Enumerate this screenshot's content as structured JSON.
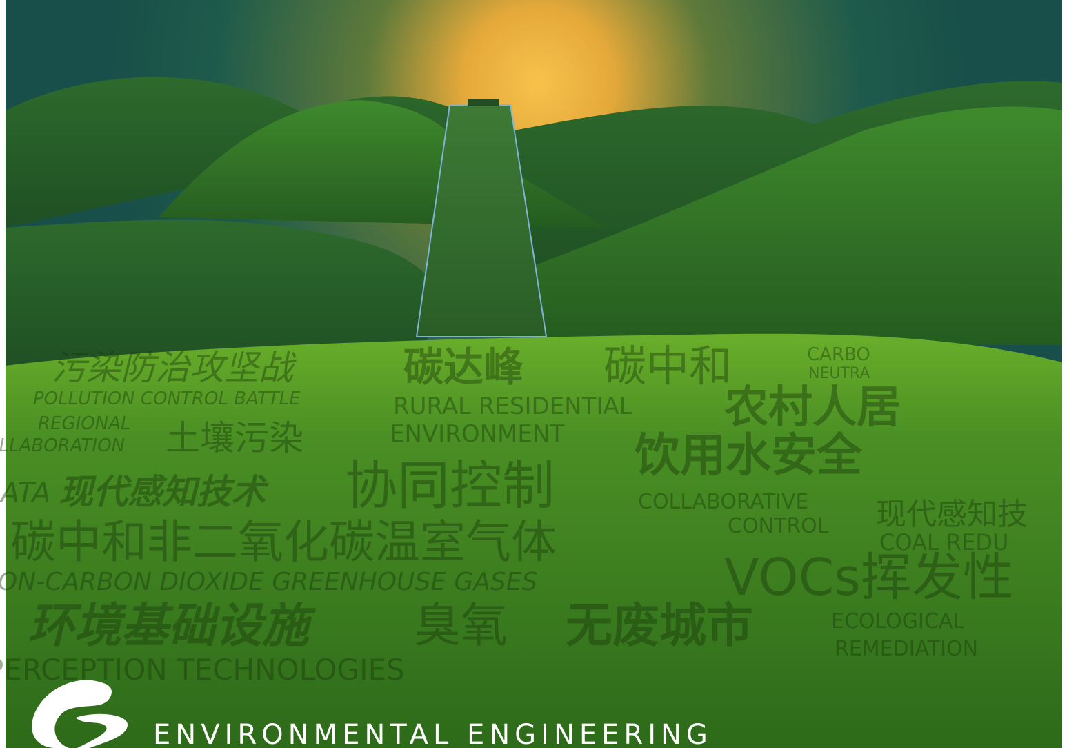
{
  "cover": {
    "title": "ENVIRONMENTAL ENGINEERING",
    "words": [
      "污染防治攻坚战",
      "碳达峰",
      "碳中和",
      "CARBO",
      "NEUTRA",
      "POLLUTION CONTROL BATTLE",
      "REGIONAL",
      "COLLABORATION",
      "土壤污染",
      "RURAL RESIDENTIAL",
      "ENVIRONMENT",
      "农村人居",
      "饮用水安全",
      "DATA",
      "现代感知技术",
      "协同控制",
      "COLLABORATIVE",
      "CONTROL",
      "现代感知技",
      "碳中和非二氧化碳温室气体",
      "COAL REDU",
      "NON-CARBON DIOXIDE GREENHOUSE GASES",
      "VOCs挥发性",
      "环境基础设施",
      "臭氧",
      "无废城市",
      "ECOLOGICAL",
      "REMEDIATION",
      "PERCEPTION TECHNOLOGIES"
    ]
  }
}
